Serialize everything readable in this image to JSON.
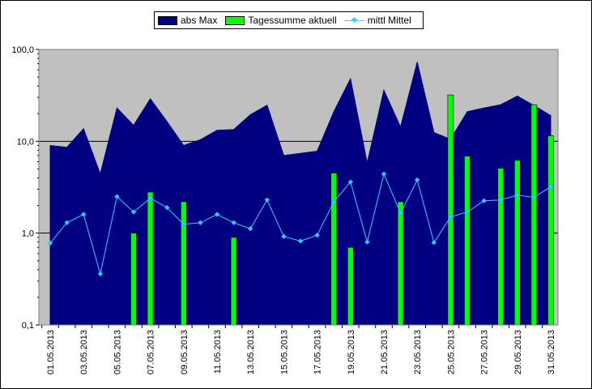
{
  "chart_data": {
    "type": "bar",
    "y_scale": "log",
    "ylim": [
      0.1,
      100
    ],
    "y_ticks": [
      "100,0",
      "10,0",
      "1,0",
      "0,1"
    ],
    "grid": "horizontal major gridlines",
    "legend_position": "top",
    "x": [
      "01.05.2013",
      "02.05.2013",
      "03.05.2013",
      "04.05.2013",
      "05.05.2013",
      "06.05.2013",
      "07.05.2013",
      "08.05.2013",
      "09.05.2013",
      "10.05.2013",
      "11.05.2013",
      "12.05.2013",
      "13.05.2013",
      "14.05.2013",
      "15.05.2013",
      "16.05.2013",
      "17.05.2013",
      "18.05.2013",
      "19.05.2013",
      "20.05.2013",
      "21.05.2013",
      "22.05.2013",
      "23.05.2013",
      "24.05.2013",
      "25.05.2013",
      "26.05.2013",
      "27.05.2013",
      "28.05.2013",
      "29.05.2013",
      "30.05.2013",
      "31.05.2013"
    ],
    "x_tick_labels": [
      "01.05.2013",
      "03.05.2013",
      "05.05.2013",
      "07.05.2013",
      "09.05.2013",
      "11.05.2013",
      "13.05.2013",
      "15.05.2013",
      "17.05.2013",
      "19.05.2013",
      "21.05.2013",
      "23.05.2013",
      "25.05.2013",
      "27.05.2013",
      "29.05.2013",
      "31.05.2013"
    ],
    "series": [
      {
        "name": "abs Max",
        "kind": "area",
        "color": "#000080",
        "values": [
          9.0,
          8.6,
          13.7,
          4.4,
          23.0,
          14.9,
          29.0,
          16.4,
          9.0,
          10.4,
          13.2,
          13.4,
          19.5,
          24.7,
          7.0,
          7.4,
          7.8,
          21.0,
          48.0,
          5.8,
          36.0,
          14.3,
          73.0,
          12.5,
          10.5,
          21.0,
          23.0,
          25.0,
          31.0,
          24.5,
          19.0
        ]
      },
      {
        "name": "Tagessumme aktuell",
        "kind": "bar",
        "color": "#00ff00",
        "values": [
          null,
          null,
          null,
          null,
          null,
          1.0,
          2.8,
          null,
          2.2,
          null,
          null,
          0.9,
          null,
          null,
          null,
          null,
          null,
          4.5,
          0.7,
          null,
          null,
          2.2,
          null,
          null,
          32.0,
          6.9,
          null,
          5.1,
          6.2,
          25.0,
          11.5
        ]
      },
      {
        "name": "mittl Mittel",
        "kind": "line",
        "color": "#33ccff",
        "values": [
          0.78,
          1.3,
          1.6,
          0.36,
          2.5,
          1.7,
          2.4,
          1.9,
          1.25,
          1.3,
          1.6,
          1.3,
          1.12,
          2.3,
          0.92,
          0.82,
          0.95,
          2.2,
          3.6,
          0.8,
          4.4,
          1.65,
          3.8,
          0.79,
          1.5,
          1.7,
          2.25,
          2.3,
          2.6,
          2.45,
          3.2
        ]
      }
    ]
  },
  "colors": {
    "plot_background": "#c0c0c0",
    "gridline": "#000000"
  }
}
